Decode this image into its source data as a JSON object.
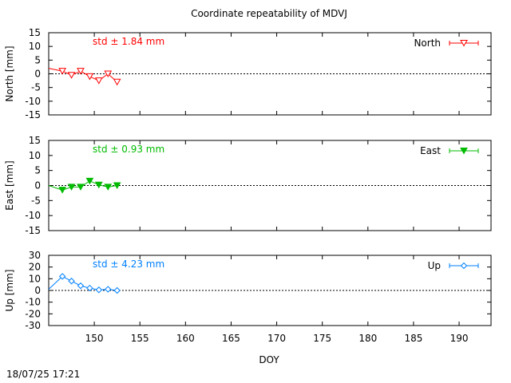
{
  "chart_data": {
    "type": "line",
    "title": "Coordinate repeatability of MDVJ",
    "xlabel": "DOY",
    "timestamp": "18/07/25 17:21",
    "xlim": [
      145,
      193.5
    ],
    "x_ticks": [
      150,
      155,
      160,
      165,
      170,
      175,
      180,
      185,
      190
    ],
    "panels": [
      {
        "name": "North",
        "ylabel": "North [mm]",
        "ylim": [
          -15,
          15
        ],
        "y_ticks": [
          15,
          10,
          5,
          0,
          -5,
          -10,
          -15
        ],
        "std_label": "std ± 1.84 mm",
        "color": "#ff0000",
        "marker": "triangle-down-open",
        "x": [
          145,
          146.5,
          147.5,
          148.5,
          149.5,
          150.5,
          151.5,
          152.5
        ],
        "y": [
          2,
          1,
          -0.5,
          1,
          -1,
          -2.5,
          0,
          -3
        ]
      },
      {
        "name": "East",
        "ylabel": "East [mm]",
        "ylim": [
          -15,
          15
        ],
        "y_ticks": [
          15,
          10,
          5,
          0,
          -5,
          -10,
          -15
        ],
        "std_label": "std ± 0.93 mm",
        "color": "#00bb00",
        "marker": "triangle-down-filled",
        "x": [
          145,
          146.5,
          147.5,
          148.5,
          149.5,
          150.5,
          151.5,
          152.5
        ],
        "y": [
          0,
          -1.5,
          -0.5,
          -0.5,
          1.5,
          0.2,
          -0.5,
          0
        ]
      },
      {
        "name": "Up",
        "ylabel": "Up [mm]",
        "ylim": [
          -30,
          30
        ],
        "y_ticks": [
          30,
          20,
          10,
          0,
          -10,
          -20,
          -30
        ],
        "std_label": "std ± 4.23 mm",
        "color": "#0080ff",
        "marker": "diamond-open",
        "x": [
          145,
          146.5,
          147.5,
          148.5,
          149.5,
          150.5,
          151.5,
          152.5
        ],
        "y": [
          1,
          12,
          8,
          4,
          2,
          0.5,
          1,
          0
        ]
      }
    ]
  }
}
